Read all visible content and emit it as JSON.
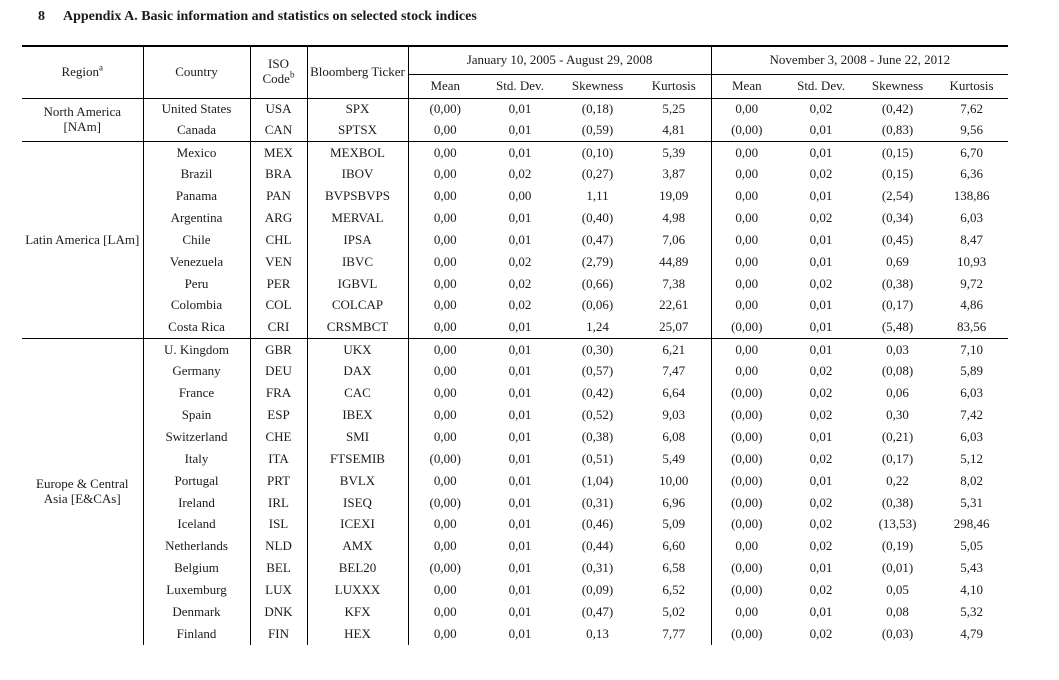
{
  "page": {
    "page_number": "8",
    "title": "Appendix A. Basic information and statistics on selected stock indices"
  },
  "table": {
    "headers": {
      "region": "Region",
      "region_sup": "a",
      "country": "Country",
      "iso": "ISO Code",
      "iso_sup": "b",
      "ticker": "Bloomberg Ticker",
      "period1": "January 10, 2005 - August 29, 2008",
      "period2": "November 3, 2008 - June 22, 2012",
      "stats": [
        "Mean",
        "Std. Dev.",
        "Skewness",
        "Kurtosis"
      ]
    },
    "sections": [
      {
        "region": "North America [NAm]",
        "rows": [
          {
            "country": "United States",
            "iso": "USA",
            "ticker": "SPX",
            "p1": [
              "(0,00)",
              "0,01",
              "(0,18)",
              "5,25"
            ],
            "p2": [
              "0,00",
              "0,02",
              "(0,42)",
              "7,62"
            ]
          },
          {
            "country": "Canada",
            "iso": "CAN",
            "ticker": "SPTSX",
            "p1": [
              "0,00",
              "0,01",
              "(0,59)",
              "4,81"
            ],
            "p2": [
              "(0,00)",
              "0,01",
              "(0,83)",
              "9,56"
            ]
          }
        ]
      },
      {
        "region": "Latin America [LAm]",
        "rows": [
          {
            "country": "Mexico",
            "iso": "MEX",
            "ticker": "MEXBOL",
            "p1": [
              "0,00",
              "0,01",
              "(0,10)",
              "5,39"
            ],
            "p2": [
              "0,00",
              "0,01",
              "(0,15)",
              "6,70"
            ]
          },
          {
            "country": "Brazil",
            "iso": "BRA",
            "ticker": "IBOV",
            "p1": [
              "0,00",
              "0,02",
              "(0,27)",
              "3,87"
            ],
            "p2": [
              "0,00",
              "0,02",
              "(0,15)",
              "6,36"
            ]
          },
          {
            "country": "Panama",
            "iso": "PAN",
            "ticker": "BVPSBVPS",
            "p1": [
              "0,00",
              "0,00",
              "1,11",
              "19,09"
            ],
            "p2": [
              "0,00",
              "0,01",
              "(2,54)",
              "138,86"
            ]
          },
          {
            "country": "Argentina",
            "iso": "ARG",
            "ticker": "MERVAL",
            "p1": [
              "0,00",
              "0,01",
              "(0,40)",
              "4,98"
            ],
            "p2": [
              "0,00",
              "0,02",
              "(0,34)",
              "6,03"
            ]
          },
          {
            "country": "Chile",
            "iso": "CHL",
            "ticker": "IPSA",
            "p1": [
              "0,00",
              "0,01",
              "(0,47)",
              "7,06"
            ],
            "p2": [
              "0,00",
              "0,01",
              "(0,45)",
              "8,47"
            ]
          },
          {
            "country": "Venezuela",
            "iso": "VEN",
            "ticker": "IBVC",
            "p1": [
              "0,00",
              "0,02",
              "(2,79)",
              "44,89"
            ],
            "p2": [
              "0,00",
              "0,01",
              "0,69",
              "10,93"
            ]
          },
          {
            "country": "Peru",
            "iso": "PER",
            "ticker": "IGBVL",
            "p1": [
              "0,00",
              "0,02",
              "(0,66)",
              "7,38"
            ],
            "p2": [
              "0,00",
              "0,02",
              "(0,38)",
              "9,72"
            ]
          },
          {
            "country": "Colombia",
            "iso": "COL",
            "ticker": "COLCAP",
            "p1": [
              "0,00",
              "0,02",
              "(0,06)",
              "22,61"
            ],
            "p2": [
              "0,00",
              "0,01",
              "(0,17)",
              "4,86"
            ]
          },
          {
            "country": "Costa Rica",
            "iso": "CRI",
            "ticker": "CRSMBCT",
            "p1": [
              "0,00",
              "0,01",
              "1,24",
              "25,07"
            ],
            "p2": [
              "(0,00)",
              "0,01",
              "(5,48)",
              "83,56"
            ]
          }
        ]
      },
      {
        "region": "Europe & Central Asia [E&CAs]",
        "rows": [
          {
            "country": "U. Kingdom",
            "iso": "GBR",
            "ticker": "UKX",
            "p1": [
              "0,00",
              "0,01",
              "(0,30)",
              "6,21"
            ],
            "p2": [
              "0,00",
              "0,01",
              "0,03",
              "7,10"
            ]
          },
          {
            "country": "Germany",
            "iso": "DEU",
            "ticker": "DAX",
            "p1": [
              "0,00",
              "0,01",
              "(0,57)",
              "7,47"
            ],
            "p2": [
              "0,00",
              "0,02",
              "(0,08)",
              "5,89"
            ]
          },
          {
            "country": "France",
            "iso": "FRA",
            "ticker": "CAC",
            "p1": [
              "0,00",
              "0,01",
              "(0,42)",
              "6,64"
            ],
            "p2": [
              "(0,00)",
              "0,02",
              "0,06",
              "6,03"
            ]
          },
          {
            "country": "Spain",
            "iso": "ESP",
            "ticker": "IBEX",
            "p1": [
              "0,00",
              "0,01",
              "(0,52)",
              "9,03"
            ],
            "p2": [
              "(0,00)",
              "0,02",
              "0,30",
              "7,42"
            ]
          },
          {
            "country": "Switzerland",
            "iso": "CHE",
            "ticker": "SMI",
            "p1": [
              "0,00",
              "0,01",
              "(0,38)",
              "6,08"
            ],
            "p2": [
              "(0,00)",
              "0,01",
              "(0,21)",
              "6,03"
            ]
          },
          {
            "country": "Italy",
            "iso": "ITA",
            "ticker": "FTSEMIB",
            "p1": [
              "(0,00)",
              "0,01",
              "(0,51)",
              "5,49"
            ],
            "p2": [
              "(0,00)",
              "0,02",
              "(0,17)",
              "5,12"
            ]
          },
          {
            "country": "Portugal",
            "iso": "PRT",
            "ticker": "BVLX",
            "p1": [
              "0,00",
              "0,01",
              "(1,04)",
              "10,00"
            ],
            "p2": [
              "(0,00)",
              "0,01",
              "0,22",
              "8,02"
            ]
          },
          {
            "country": "Ireland",
            "iso": "IRL",
            "ticker": "ISEQ",
            "p1": [
              "(0,00)",
              "0,01",
              "(0,31)",
              "6,96"
            ],
            "p2": [
              "(0,00)",
              "0,02",
              "(0,38)",
              "5,31"
            ]
          },
          {
            "country": "Iceland",
            "iso": "ISL",
            "ticker": "ICEXI",
            "p1": [
              "0,00",
              "0,01",
              "(0,46)",
              "5,09"
            ],
            "p2": [
              "(0,00)",
              "0,02",
              "(13,53)",
              "298,46"
            ]
          },
          {
            "country": "Netherlands",
            "iso": "NLD",
            "ticker": "AMX",
            "p1": [
              "0,00",
              "0,01",
              "(0,44)",
              "6,60"
            ],
            "p2": [
              "0,00",
              "0,02",
              "(0,19)",
              "5,05"
            ]
          },
          {
            "country": "Belgium",
            "iso": "BEL",
            "ticker": "BEL20",
            "p1": [
              "(0,00)",
              "0,01",
              "(0,31)",
              "6,58"
            ],
            "p2": [
              "(0,00)",
              "0,01",
              "(0,01)",
              "5,43"
            ]
          },
          {
            "country": "Luxemburg",
            "iso": "LUX",
            "ticker": "LUXXX",
            "p1": [
              "0,00",
              "0,01",
              "(0,09)",
              "6,52"
            ],
            "p2": [
              "(0,00)",
              "0,02",
              "0,05",
              "4,10"
            ]
          },
          {
            "country": "Denmark",
            "iso": "DNK",
            "ticker": "KFX",
            "p1": [
              "0,00",
              "0,01",
              "(0,47)",
              "5,02"
            ],
            "p2": [
              "0,00",
              "0,01",
              "0,08",
              "5,32"
            ]
          },
          {
            "country": "Finland",
            "iso": "FIN",
            "ticker": "HEX",
            "p1": [
              "0,00",
              "0,01",
              "0,13",
              "7,77"
            ],
            "p2": [
              "(0,00)",
              "0,02",
              "(0,03)",
              "4,79"
            ]
          }
        ]
      }
    ]
  }
}
